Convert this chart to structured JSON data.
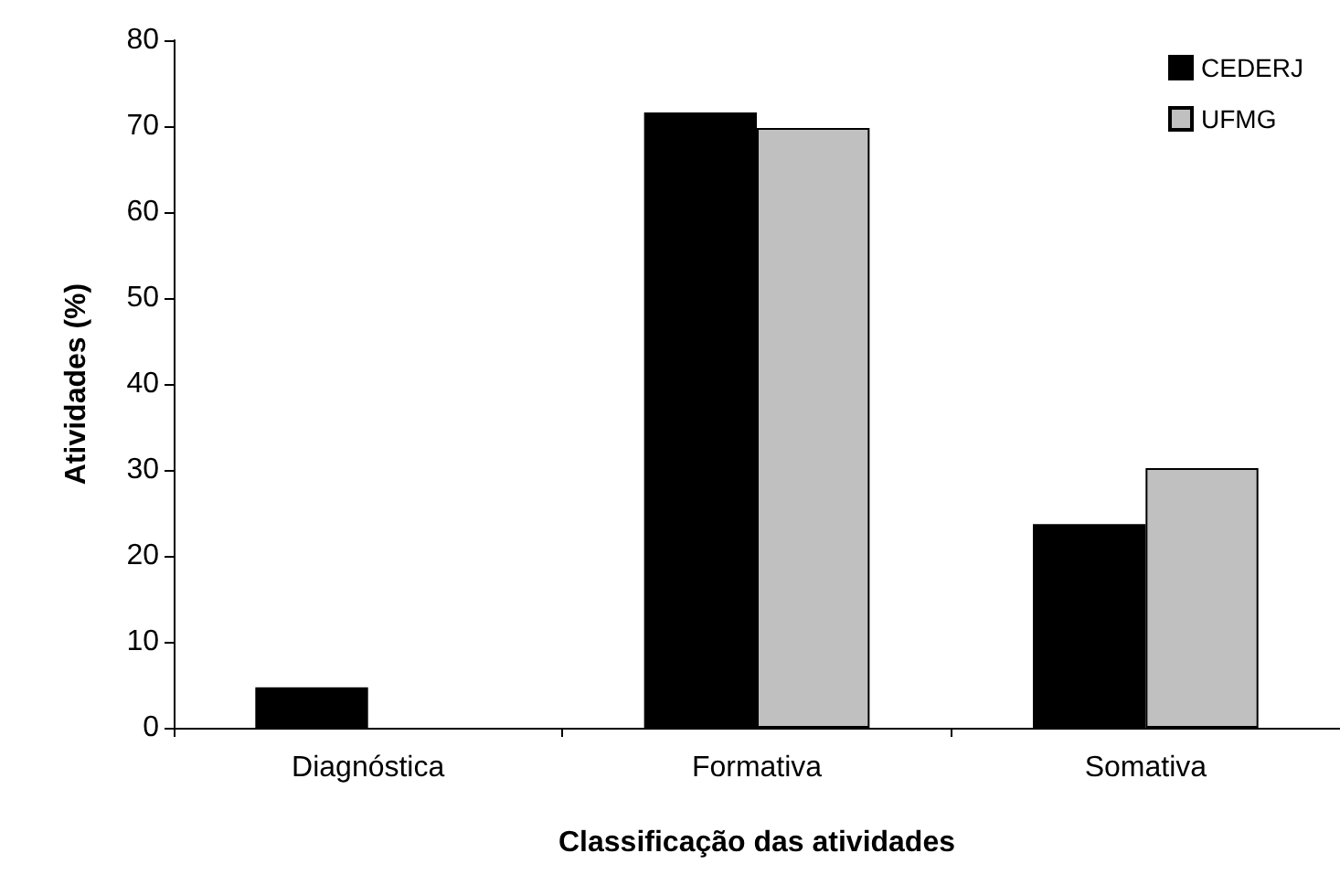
{
  "chart_data": {
    "type": "bar",
    "xlabel": "Classificação das atividades",
    "ylabel": "Atividades (%)",
    "categories": [
      "Diagnóstica",
      "Formativa",
      "Somativa"
    ],
    "series": [
      {
        "name": "CEDERJ",
        "color": "#000000",
        "values": [
          4.7,
          71.6,
          23.7
        ]
      },
      {
        "name": "UFMG",
        "color": "#c0c0c0",
        "values": [
          null,
          69.8,
          30.2
        ]
      }
    ],
    "ylim": [
      0,
      80
    ],
    "yticks": [
      0,
      10,
      20,
      30,
      40,
      50,
      60,
      70,
      80
    ],
    "grid": false,
    "legend": "top right"
  }
}
